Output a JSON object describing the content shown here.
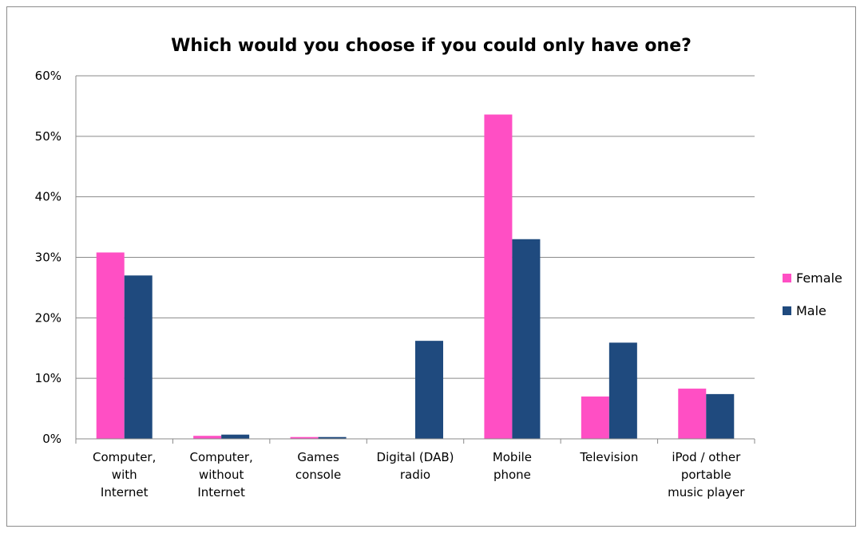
{
  "chart_data": {
    "type": "bar",
    "title": "Which would you choose if you could only have one?",
    "xlabel": "",
    "ylabel": "",
    "ylim": [
      0,
      60
    ],
    "y_ticks": [
      "0%",
      "10%",
      "20%",
      "30%",
      "40%",
      "50%",
      "60%"
    ],
    "y_tick_values": [
      0,
      10,
      20,
      30,
      40,
      50,
      60
    ],
    "grid": true,
    "legend_position": "right",
    "categories": [
      [
        "Computer,",
        "with",
        "Internet"
      ],
      [
        "Computer,",
        "without",
        "Internet"
      ],
      [
        "Games",
        "console"
      ],
      [
        "Digital (DAB)",
        "radio"
      ],
      [
        "Mobile",
        "phone"
      ],
      [
        "Television"
      ],
      [
        "iPod / other",
        "portable",
        "music player"
      ]
    ],
    "series": [
      {
        "name": "Female",
        "color": "#ff4fc4",
        "values": [
          30.8,
          0.5,
          0.3,
          0,
          53.6,
          7.0,
          8.3
        ]
      },
      {
        "name": "Male",
        "color": "#1f4a7e",
        "values": [
          27.0,
          0.7,
          0.3,
          16.2,
          33.0,
          15.9,
          7.4
        ]
      }
    ]
  }
}
